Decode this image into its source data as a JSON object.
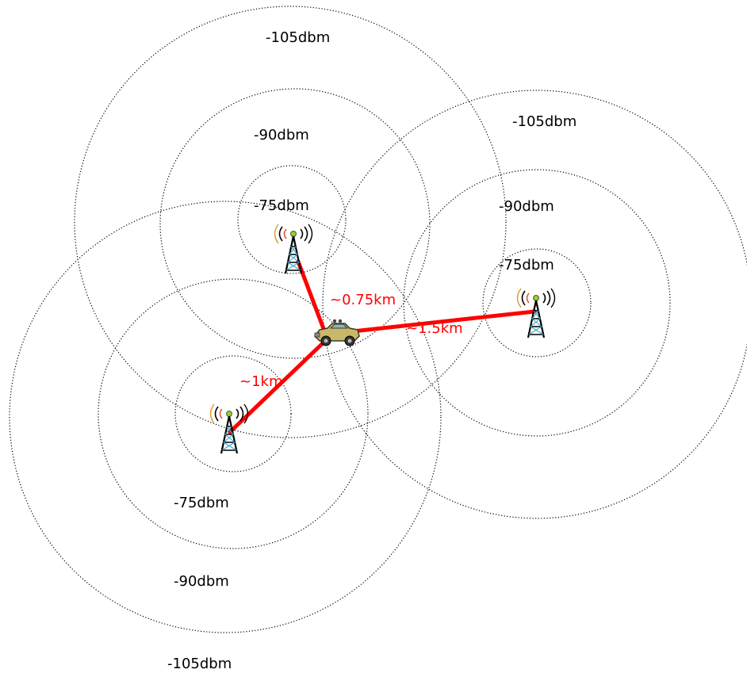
{
  "towers": [
    {
      "id": "top",
      "signal_labels": {
        "inner": "-75dbm",
        "middle": "-90dbm",
        "outer": "-105dbm"
      }
    },
    {
      "id": "right",
      "signal_labels": {
        "inner": "-75dbm",
        "middle": "-90dbm",
        "outer": "-105dbm"
      }
    },
    {
      "id": "bottom",
      "signal_labels": {
        "inner": "-75dbm",
        "middle": "-90dbm",
        "outer": "-105dbm"
      }
    }
  ],
  "distances": {
    "top": "~0.75km",
    "right": "~1.5km",
    "bottom": "~1km"
  },
  "colors": {
    "link": "#ff0000",
    "distance_text": "#ff0000",
    "ring": "#000000",
    "car_body": "#c9b86a"
  },
  "icons": {
    "tower": "cell-tower-icon",
    "vehicle": "car-icon"
  }
}
